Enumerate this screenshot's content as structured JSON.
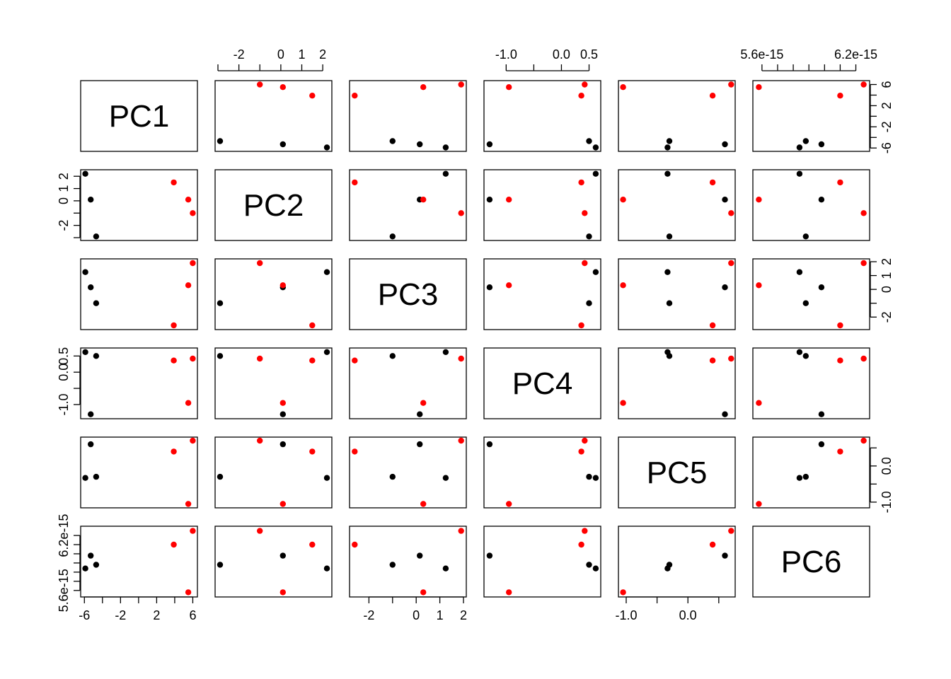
{
  "chart_data": {
    "type": "scatter",
    "title": "",
    "variables": [
      "PC1",
      "PC2",
      "PC3",
      "PC4",
      "PC5",
      "PC6"
    ],
    "colors": {
      "group1": "#000000",
      "group2": "#ff0000"
    },
    "points": [
      {
        "group": "black",
        "PC1": -5.9,
        "PC2": 2.2,
        "PC3": 1.25,
        "PC4": 0.62,
        "PC5": -0.33,
        "PC6": 5.84e-15
      },
      {
        "group": "black",
        "PC1": -5.3,
        "PC2": 0.1,
        "PC3": 0.15,
        "PC4": -1.3,
        "PC5": 0.6,
        "PC6": 5.98e-15
      },
      {
        "group": "black",
        "PC1": -4.7,
        "PC2": -2.9,
        "PC3": -1.0,
        "PC4": 0.5,
        "PC5": -0.3,
        "PC6": 5.88e-15
      },
      {
        "group": "red",
        "PC1": 3.9,
        "PC2": 1.5,
        "PC3": -2.6,
        "PC4": 0.36,
        "PC5": 0.4,
        "PC6": 6.1e-15
      },
      {
        "group": "red",
        "PC1": 5.5,
        "PC2": 0.1,
        "PC3": 0.3,
        "PC4": -0.95,
        "PC5": -1.05,
        "PC6": 5.58e-15
      },
      {
        "group": "red",
        "PC1": 6.0,
        "PC2": -1.0,
        "PC3": 1.9,
        "PC4": 0.42,
        "PC5": 0.7,
        "PC6": 6.25e-15
      }
    ],
    "axes": {
      "PC1": {
        "range": [
          -6.1,
          6.2
        ],
        "ticks": [
          -6,
          -4,
          -2,
          0,
          2,
          4,
          6
        ],
        "tick_labels": [
          "-6",
          "",
          "-2",
          "",
          "2",
          "",
          "6"
        ]
      },
      "PC2": {
        "range": [
          -3.0,
          2.3
        ],
        "ticks": [
          -3,
          -2,
          -1,
          0,
          1,
          2
        ],
        "tick_labels": [
          "",
          "-2",
          "",
          "0",
          "1",
          "2"
        ]
      },
      "PC3": {
        "range": [
          -2.7,
          2.0
        ],
        "ticks": [
          -2,
          -1,
          0,
          1,
          2
        ],
        "tick_labels": [
          "-2",
          "",
          "0",
          "1",
          "2"
        ]
      },
      "PC4": {
        "range": [
          -1.35,
          0.66
        ],
        "ticks": [
          -1.0,
          -0.5,
          0.0,
          0.5
        ],
        "tick_labels": [
          "-1.0",
          "",
          "0.0",
          "0.5"
        ]
      },
      "PC5": {
        "range": [
          -1.08,
          0.72
        ],
        "ticks": [
          -1.0,
          -0.5,
          0.0,
          0.5
        ],
        "tick_labels": [
          "-1.0",
          "",
          "0.0",
          ""
        ]
      },
      "PC6": {
        "range": [
          5.56e-15,
          6.27e-15
        ],
        "ticks": [
          5.6e-15,
          5.7e-15,
          5.8e-15,
          5.9e-15,
          6e-15,
          6.1e-15,
          6.2e-15
        ],
        "tick_labels": [
          "5.6e-15",
          "",
          "",
          "",
          "",
          "",
          "6.2e-15"
        ]
      }
    },
    "grid": false,
    "legend": "none"
  }
}
